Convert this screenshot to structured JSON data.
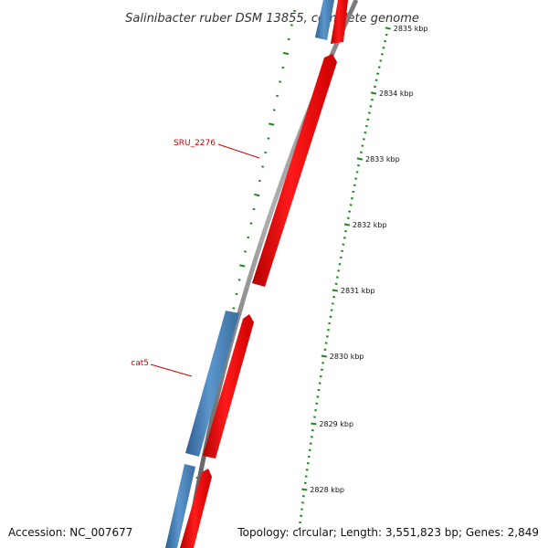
{
  "title": "Salinibacter ruber DSM 13855, complete genome",
  "accession": "Accession: NC_007677",
  "summary": "Topology: circular; Length: 3,551,823 bp; Genes: 2,849",
  "colors": {
    "forward_strand": "#ff0000",
    "reverse_strand": "#4a86bd",
    "backbone": "#888888",
    "tick": "#1e8a1e",
    "label_line": "#cc0000"
  },
  "scale": {
    "unit": "kbp",
    "major_labels": [
      "2828 kbp",
      "2829 kbp",
      "2830 kbp",
      "2831 kbp",
      "2832 kbp",
      "2833 kbp",
      "2834 kbp",
      "2835 kbp"
    ]
  },
  "gene_labels": [
    {
      "name": "SRU_2276",
      "strand": "forward"
    },
    {
      "name": "cat5",
      "strand": "reverse"
    }
  ]
}
